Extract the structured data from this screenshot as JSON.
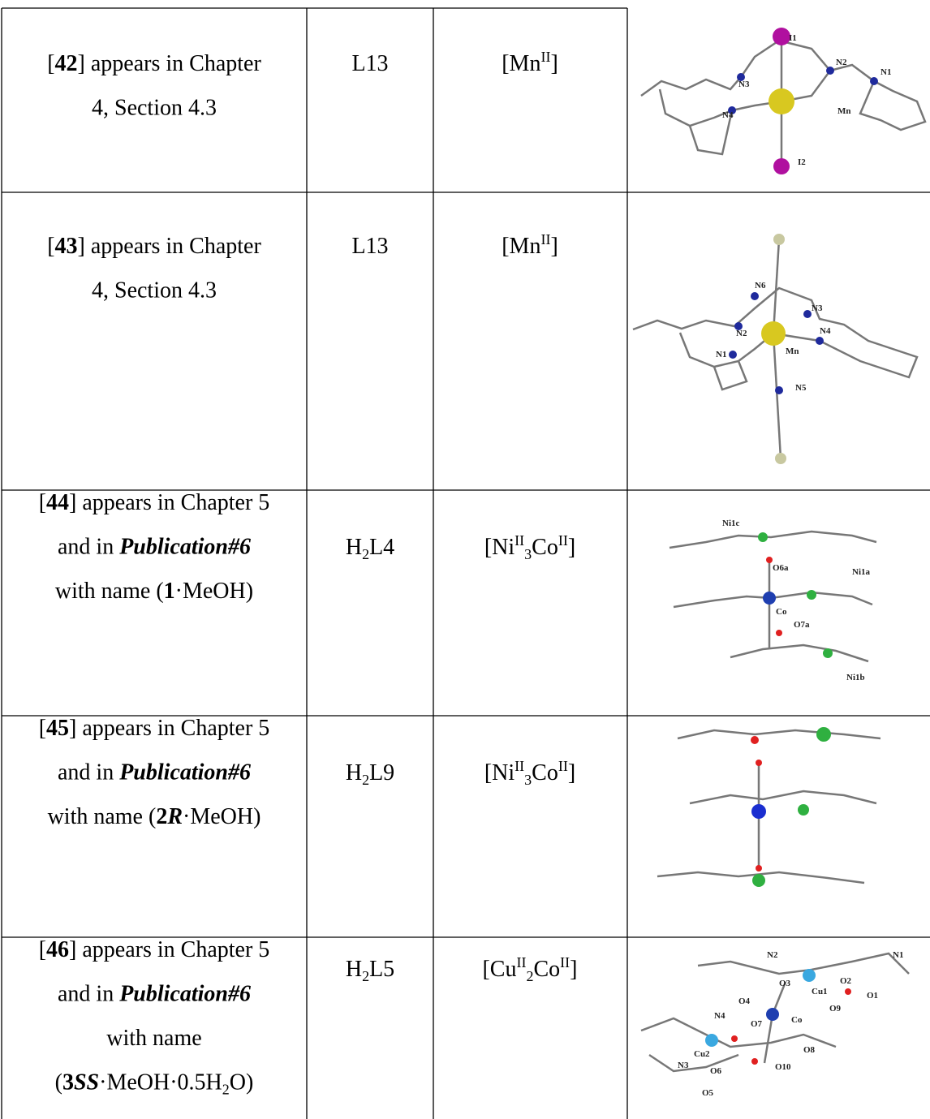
{
  "table": {
    "rows": [
      {
        "compound": [
          [
            "[",
            {
              "b": "42"
            },
            "] appears in Chapter"
          ],
          [
            "4, Section 4.3"
          ]
        ],
        "ligand": [
          [
            "L13"
          ]
        ],
        "complex": [
          [
            "[Mn",
            {
              "sup": "II"
            },
            "]"
          ]
        ],
        "figure_labels": [
          "I1",
          "N2",
          "N3",
          "N1",
          "N4",
          "Mn",
          "I2"
        ]
      },
      {
        "compound": [
          [
            "[",
            {
              "b": "43"
            },
            "] appears in Chapter"
          ],
          [
            "4, Section 4.3"
          ]
        ],
        "ligand": [
          [
            "L13"
          ]
        ],
        "complex": [
          [
            "[Mn",
            {
              "sup": "II"
            },
            "]"
          ]
        ],
        "figure_labels": [
          "N6",
          "N3",
          "N2",
          "N4",
          "N1",
          "Mn",
          "N5"
        ]
      },
      {
        "compound": [
          [
            "[",
            {
              "b": "44"
            },
            "] appears in Chapter 5"
          ],
          [
            "and in ",
            {
              "bi": "Publication#6"
            }
          ],
          [
            "with name (",
            {
              "b": "1"
            },
            "·MeOH)"
          ]
        ],
        "ligand": [
          [
            "H",
            {
              "sub": "2"
            },
            "L4"
          ]
        ],
        "complex": [
          [
            "[Ni",
            {
              "sup": "II"
            },
            {
              "sub": "3"
            },
            "Co",
            {
              "sup": "II"
            },
            "]"
          ]
        ],
        "figure_labels": [
          "Ni1c",
          "O6a",
          "Ni1a",
          "Co",
          "O7a",
          "Ni1b"
        ]
      },
      {
        "compound": [
          [
            "[",
            {
              "b": "45"
            },
            "] appears in Chapter 5"
          ],
          [
            "and in ",
            {
              "bi": "Publication#6"
            }
          ],
          [
            "with name (",
            {
              "b": "2"
            },
            {
              "bi": "R"
            },
            "·MeOH)"
          ]
        ],
        "ligand": [
          [
            "H",
            {
              "sub": "2"
            },
            "L9"
          ]
        ],
        "complex": [
          [
            "[Ni",
            {
              "sup": "II"
            },
            {
              "sub": "3"
            },
            "Co",
            {
              "sup": "II"
            },
            "]"
          ]
        ],
        "figure_labels": []
      },
      {
        "compound": [
          [
            "[",
            {
              "b": "46"
            },
            "] appears in Chapter 5"
          ],
          [
            "and in ",
            {
              "bi": "Publication#6"
            }
          ],
          [
            "with name"
          ],
          [
            "(",
            {
              "b": "3"
            },
            {
              "bi": "SS"
            },
            "·MeOH·0.5H",
            {
              "sub": "2"
            },
            "O)"
          ]
        ],
        "ligand": [
          [
            "H",
            {
              "sub": "2"
            },
            "L5"
          ]
        ],
        "complex": [
          [
            "[Cu",
            {
              "sup": "II"
            },
            {
              "sub": "2"
            },
            "Co",
            {
              "sup": "II"
            },
            "]"
          ]
        ],
        "figure_labels": [
          "N2",
          "N1",
          "O3",
          "O2",
          "Cu1",
          "O1",
          "O4",
          "O9",
          "N4",
          "O7",
          "Co",
          "Cu2",
          "O8",
          "N3",
          "O6",
          "O10",
          "O5"
        ]
      }
    ]
  }
}
